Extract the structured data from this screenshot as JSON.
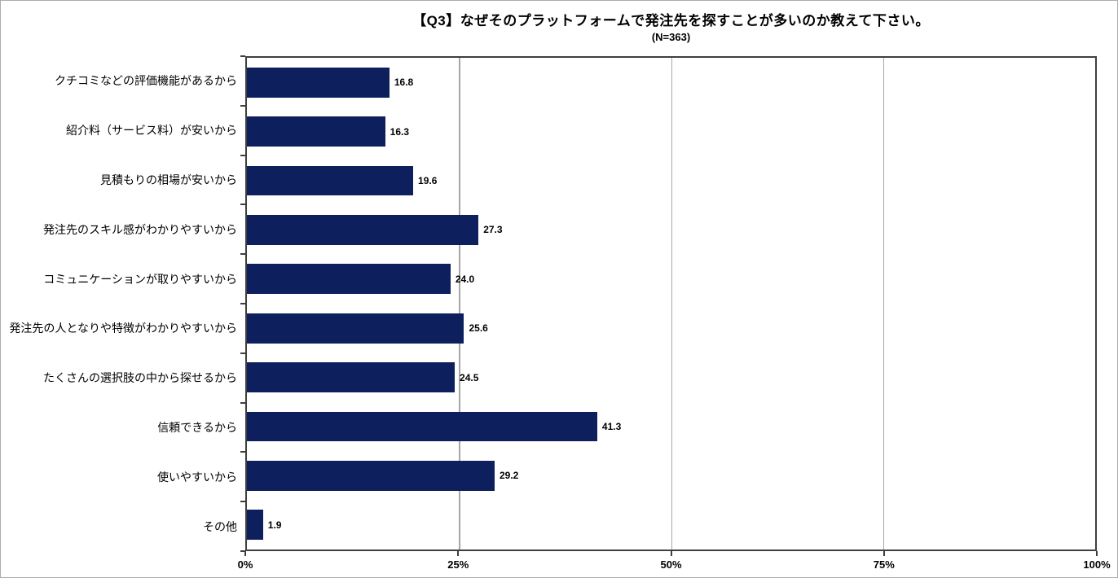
{
  "chart_data": {
    "type": "bar",
    "orientation": "horizontal",
    "title": "【Q3】なぜそのプラットフォームで発注先を探すことが多いのか教えて下さい。",
    "subtitle": "(N=363)",
    "categories": [
      "クチコミなどの評価機能があるから",
      "紹介料（サービス料）が安いから",
      "見積もりの相場が安いから",
      "発注先のスキル感がわかりやすいから",
      "コミュニケーションが取りやすいから",
      "発注先の人となりや特徴がわかりやすいから",
      "たくさんの選択肢の中から探せるから",
      "信頼できるから",
      "使いやすいから",
      "その他"
    ],
    "values": [
      16.8,
      16.3,
      19.6,
      27.3,
      24.0,
      25.6,
      24.5,
      41.3,
      29.2,
      1.9
    ],
    "value_labels": [
      "16.8",
      "16.3",
      "19.6",
      "27.3",
      "24.0",
      "25.6",
      "24.5",
      "41.3",
      "29.2",
      "1.9"
    ],
    "xlabel": "",
    "ylabel": "",
    "xlim": [
      0,
      100
    ],
    "x_ticks": [
      {
        "label": "0%",
        "value": 0
      },
      {
        "label": "25%",
        "value": 25
      },
      {
        "label": "50%",
        "value": 50
      },
      {
        "label": "75%",
        "value": 75
      },
      {
        "label": "100%",
        "value": 100
      }
    ],
    "grid": "vertical-major",
    "legend": "none",
    "colors": {
      "bar": "#0D1F5C",
      "gridline": "#A6A6A6",
      "axis": "#3F3F3F",
      "text": "#000000",
      "background": "#FFFFFF",
      "outer_border": "#ABABAB"
    }
  }
}
